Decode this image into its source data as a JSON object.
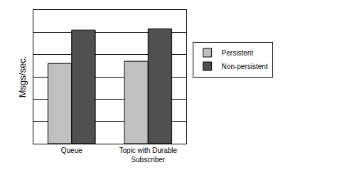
{
  "chart_data": {
    "type": "bar",
    "y_label": "Msgs/sec.",
    "categories": [
      "Queue",
      "Topic with Durable Subscriber"
    ],
    "series": [
      {
        "name": "Persistent",
        "color": "#c0c0c0",
        "values": [
          3.6,
          3.7
        ]
      },
      {
        "name": "Non-persistent",
        "color": "#505050",
        "values": [
          5.1,
          5.15
        ]
      }
    ],
    "ylim": [
      0,
      6
    ],
    "yticks": [
      0,
      1,
      2,
      3,
      4,
      5,
      6
    ],
    "grid": true,
    "legend": "right",
    "tick_labels": "x"
  }
}
